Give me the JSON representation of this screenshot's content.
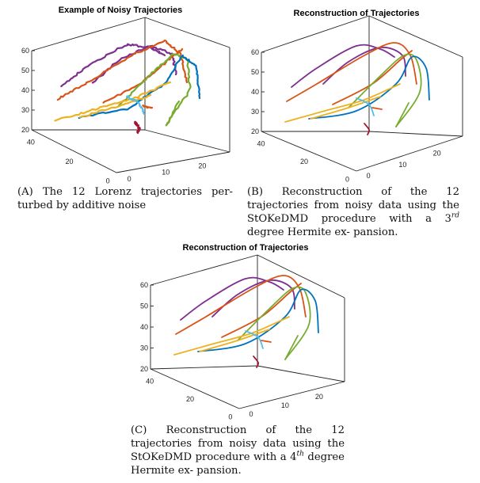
{
  "figures": [
    {
      "id": "A",
      "title": "Example of Noisy Trajectories",
      "noisy": true,
      "caption": {
        "label": "(A)",
        "lines": [
          "The 12 Lorenz trajectories per-",
          "turbed by additive noise"
        ]
      }
    },
    {
      "id": "B",
      "title": "Reconstruction of Trajectories",
      "noisy": false,
      "caption": {
        "label": "(B)",
        "lines": [
          "Reconstruction of the 12 trajectories",
          "from noisy data using the StOKeDMD",
          "procedure with a 3",
          "degree Hermite ex-",
          "pansion."
        ],
        "superscript": "rd"
      }
    },
    {
      "id": "C",
      "title": "Reconstruction of Trajectories",
      "noisy": false,
      "caption": {
        "label": "(C)",
        "lines": [
          "Reconstruction of the 12 trajectories",
          "from noisy data using the StOKeDMD",
          "procedure with a 4",
          "degree Hermite ex-",
          "pansion."
        ],
        "superscript": "th"
      }
    }
  ],
  "chart_data": [
    {
      "type": "line3d",
      "title": "Example of Noisy Trajectories",
      "z_ticks": [
        20,
        30,
        40,
        50,
        60
      ],
      "y_ticks": [
        0,
        20,
        40
      ],
      "x_ticks": [
        0,
        10,
        20
      ],
      "series_colors": [
        "#0072BD",
        "#D95319",
        "#EDB120",
        "#7E2F8E",
        "#77AC30",
        "#4DBEEE",
        "#A2142F"
      ]
    },
    {
      "type": "line3d",
      "title": "Reconstruction of Trajectories",
      "z_ticks": [
        20,
        30,
        40,
        50,
        60
      ],
      "y_ticks": [
        0,
        20,
        40
      ],
      "x_ticks": [
        0,
        10,
        20
      ],
      "series_colors": [
        "#0072BD",
        "#D95319",
        "#EDB120",
        "#7E2F8E",
        "#77AC30",
        "#4DBEEE",
        "#A2142F"
      ]
    },
    {
      "type": "line3d",
      "title": "Reconstruction of Trajectories",
      "z_ticks": [
        20,
        30,
        40,
        50,
        60
      ],
      "y_ticks": [
        0,
        20,
        40
      ],
      "x_ticks": [
        0,
        10,
        20
      ],
      "series_colors": [
        "#0072BD",
        "#D95319",
        "#EDB120",
        "#7E2F8E",
        "#77AC30",
        "#4DBEEE",
        "#A2142F"
      ]
    }
  ]
}
